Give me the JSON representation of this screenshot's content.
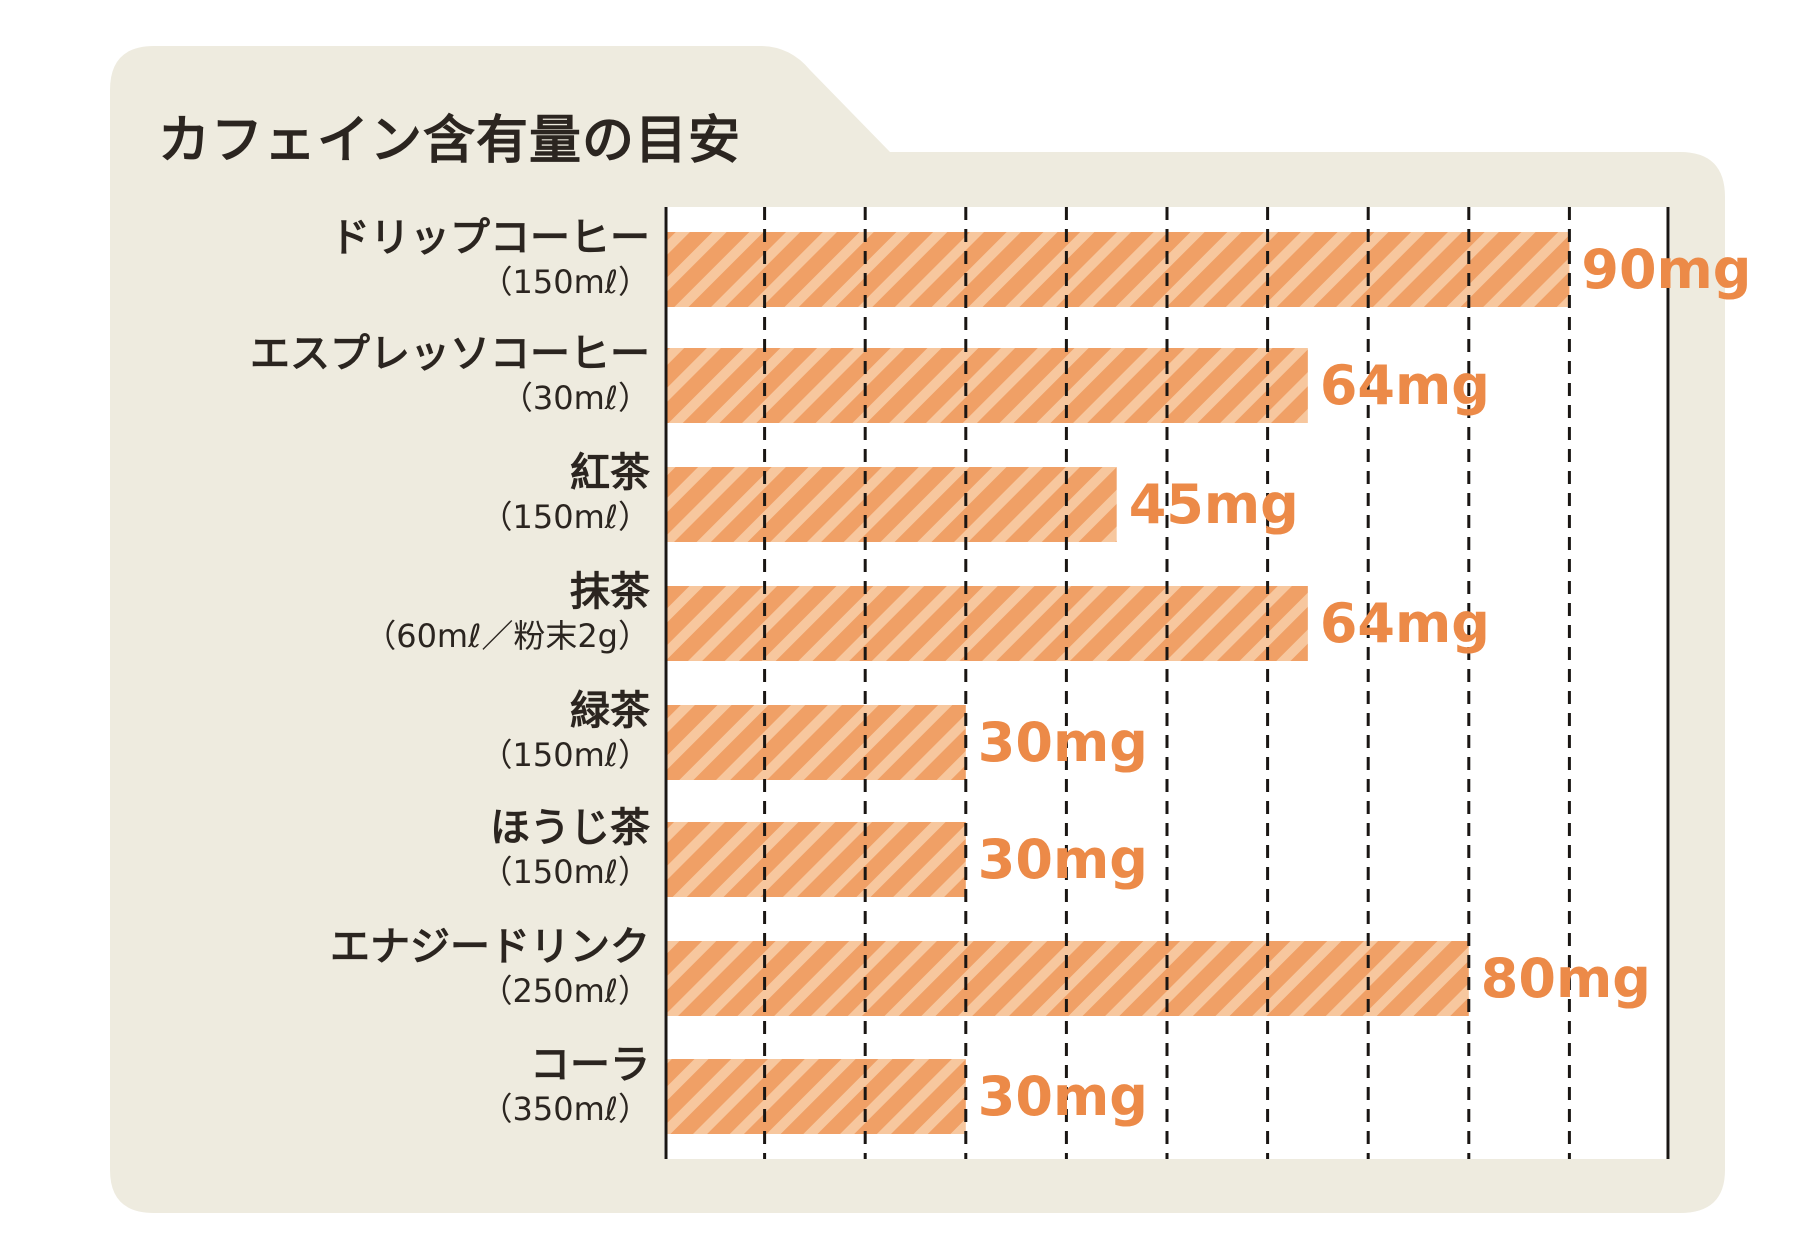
{
  "chart_data": {
    "type": "bar",
    "orientation": "horizontal",
    "title": "カフェイン含有量の目安",
    "categories": [
      {
        "name": "ドリップコーヒー",
        "serving": "（150mℓ）"
      },
      {
        "name": "エスプレッソコーヒー",
        "serving": "（30mℓ）"
      },
      {
        "name": "紅茶",
        "serving": "（150mℓ）"
      },
      {
        "name": "抹茶",
        "serving": "（60mℓ／粉末2g）"
      },
      {
        "name": "緑茶",
        "serving": "（150mℓ）"
      },
      {
        "name": "ほうじ茶",
        "serving": "（150mℓ）"
      },
      {
        "name": "エナジードリンク",
        "serving": "（250mℓ）"
      },
      {
        "name": "コーラ",
        "serving": "（350mℓ）"
      }
    ],
    "values": [
      90,
      64,
      45,
      64,
      30,
      30,
      80,
      30
    ],
    "value_labels": [
      "90mg",
      "64mg",
      "45mg",
      "64mg",
      "30mg",
      "30mg",
      "80mg",
      "30mg"
    ],
    "unit": "mg",
    "xlim": [
      0,
      100
    ],
    "grid": true,
    "grid_step": 10,
    "colors": {
      "bar": "#f0a066",
      "stripe": "#f7c79e",
      "value_text": "#ec8a48",
      "background": "#eeebdf"
    }
  }
}
